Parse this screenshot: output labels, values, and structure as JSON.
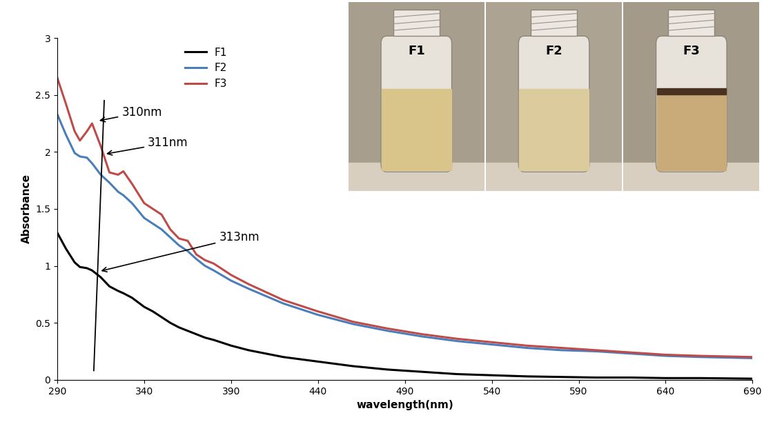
{
  "chart_data": {
    "type": "line",
    "x_label": "wavelength(nm)",
    "y_label": "Absorbance",
    "x": [
      290,
      295,
      300,
      303,
      307,
      310,
      315,
      320,
      325,
      328,
      333,
      340,
      345,
      350,
      355,
      360,
      365,
      370,
      375,
      380,
      390,
      400,
      420,
      440,
      460,
      480,
      500,
      520,
      540,
      560,
      580,
      600,
      620,
      640,
      660,
      690
    ],
    "series": [
      {
        "name": "F1",
        "color": "#000000",
        "values": [
          1.29,
          1.15,
          1.03,
          0.99,
          0.98,
          0.96,
          0.9,
          0.82,
          0.78,
          0.76,
          0.72,
          0.64,
          0.6,
          0.55,
          0.5,
          0.46,
          0.43,
          0.4,
          0.37,
          0.35,
          0.3,
          0.26,
          0.2,
          0.16,
          0.12,
          0.09,
          0.07,
          0.05,
          0.04,
          0.03,
          0.025,
          0.02,
          0.02,
          0.015,
          0.015,
          0.01
        ]
      },
      {
        "name": "F2",
        "color": "#4a7ebb",
        "values": [
          2.33,
          2.15,
          1.99,
          1.96,
          1.95,
          1.9,
          1.8,
          1.73,
          1.65,
          1.62,
          1.55,
          1.42,
          1.37,
          1.32,
          1.25,
          1.18,
          1.13,
          1.06,
          1.0,
          0.96,
          0.87,
          0.8,
          0.67,
          0.57,
          0.49,
          0.43,
          0.38,
          0.34,
          0.31,
          0.28,
          0.26,
          0.25,
          0.23,
          0.21,
          0.2,
          0.19
        ]
      },
      {
        "name": "F3",
        "color": "#be4b48",
        "values": [
          2.65,
          2.42,
          2.18,
          2.1,
          2.18,
          2.25,
          2.05,
          1.82,
          1.8,
          1.83,
          1.72,
          1.55,
          1.5,
          1.45,
          1.32,
          1.24,
          1.22,
          1.1,
          1.05,
          1.02,
          0.92,
          0.84,
          0.7,
          0.6,
          0.51,
          0.45,
          0.4,
          0.36,
          0.33,
          0.3,
          0.28,
          0.26,
          0.24,
          0.22,
          0.21,
          0.2
        ]
      }
    ],
    "xlim": [
      290,
      690
    ],
    "xticks": [
      290,
      340,
      390,
      440,
      490,
      540,
      590,
      640,
      690
    ],
    "ylim": [
      0,
      3
    ],
    "yticks": [
      0,
      0.5,
      1,
      1.5,
      2,
      2.5,
      3
    ],
    "grid": false,
    "legend": "upper left",
    "annotations": [
      "310nm",
      "311nm",
      "313nm"
    ],
    "photo_labels": [
      "F1",
      "F2",
      "F3"
    ]
  }
}
